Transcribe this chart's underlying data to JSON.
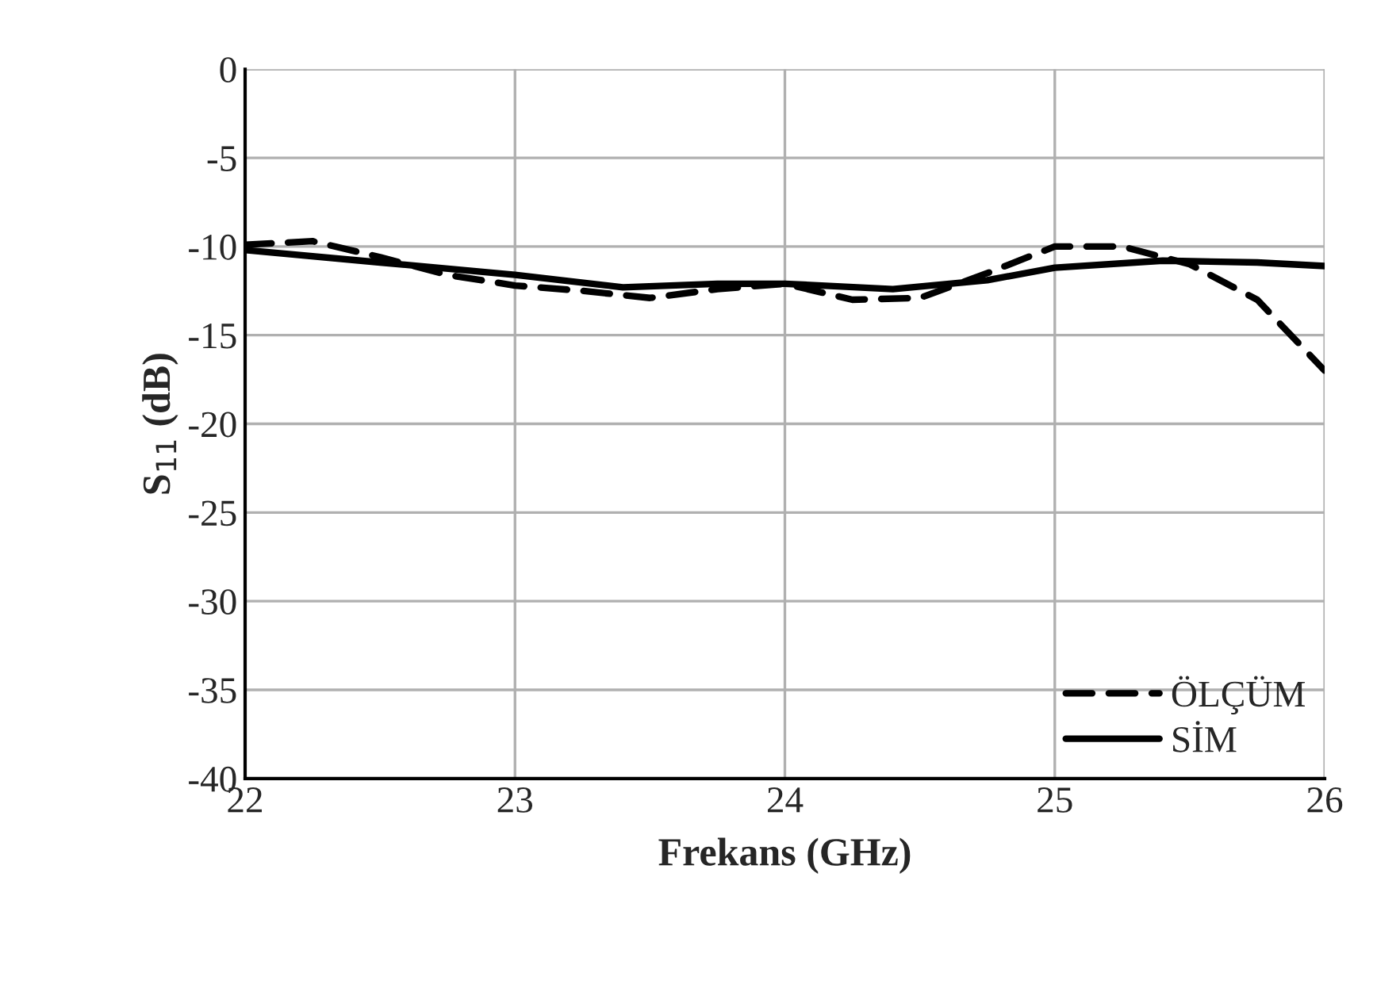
{
  "chart_data": {
    "type": "line",
    "xlabel": "Frekans (GHz)",
    "ylabel": "S$_{11}$ (dB)",
    "xlim": [
      22,
      26
    ],
    "xticks": [
      22,
      23,
      24,
      25,
      26
    ],
    "ylim": [
      -40,
      0
    ],
    "yticks": [
      -40,
      -35,
      -30,
      -25,
      -20,
      -15,
      -10,
      -5,
      0
    ],
    "grid": true,
    "legend": "bottom right",
    "marker": "none",
    "series": [
      {
        "name": "ÖLÇÜM",
        "color": "#000000",
        "line_style": "dashed",
        "x": [
          22,
          22.25,
          22.5,
          22.75,
          23,
          23.25,
          23.5,
          23.75,
          24,
          24.25,
          24.5,
          24.75,
          25,
          25.25,
          25.5,
          25.75,
          26
        ],
        "values": [
          -9.9,
          -9.7,
          -10.6,
          -11.6,
          -12.2,
          -12.5,
          -12.9,
          -12.4,
          -12.1,
          -13,
          -12.9,
          -11.5,
          -10,
          -10,
          -11,
          -13,
          -17
        ]
      },
      {
        "name": "SİM",
        "color": "#000000",
        "line_style": "solid",
        "x": [
          22,
          22.5,
          23,
          23.4,
          23.75,
          24,
          24.4,
          24.75,
          25,
          25.4,
          25.75,
          26
        ],
        "values": [
          -10.2,
          -10.9,
          -11.6,
          -12.3,
          -12.1,
          -12.1,
          -12.4,
          -11.9,
          -11.2,
          -10.8,
          -10.9,
          -11.1
        ]
      }
    ]
  }
}
